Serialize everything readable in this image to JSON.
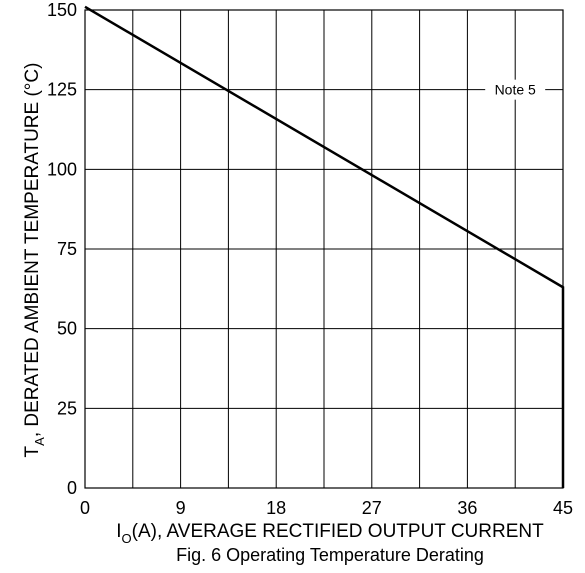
{
  "chart_data": {
    "type": "line",
    "title": "Fig. 6 Operating Temperature Derating",
    "xlabel": {
      "main": "I",
      "sub": "O",
      "rest": "(A), AVERAGE RECTIFIED OUTPUT CURRENT"
    },
    "ylabel": {
      "main": "T",
      "sub": "A",
      "rest": ", DERATED AMBIENT TEMPERATURE (°C)"
    },
    "xlim": [
      0,
      45
    ],
    "ylim": [
      0,
      150
    ],
    "x_ticks": [
      0,
      9,
      18,
      27,
      36,
      45
    ],
    "y_ticks": [
      0,
      25,
      50,
      75,
      100,
      125,
      150
    ],
    "x_gridlines": [
      0,
      4.5,
      9,
      13.5,
      18,
      22.5,
      27,
      31.5,
      36,
      40.5,
      45
    ],
    "y_gridlines": [
      0,
      25,
      50,
      75,
      100,
      125,
      150
    ],
    "grid": true,
    "series": [
      {
        "x": [
          0,
          45,
          45
        ],
        "y": [
          152,
          63,
          0
        ]
      }
    ],
    "annotations": [
      {
        "text": "Note 5",
        "x": 40.5,
        "y": 125
      }
    ]
  }
}
